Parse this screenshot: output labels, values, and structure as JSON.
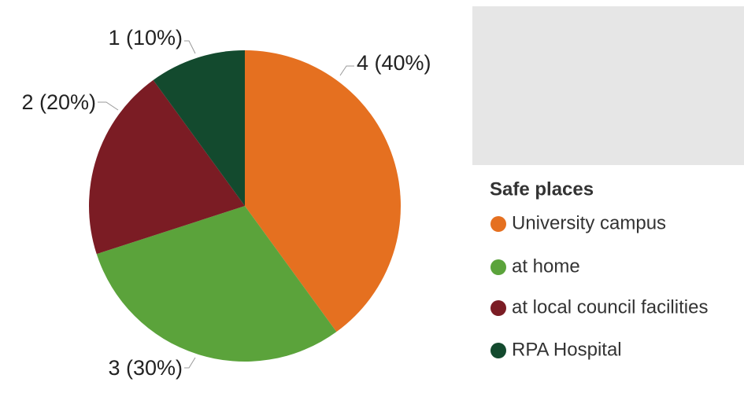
{
  "chart_data": {
    "type": "pie",
    "legend_title": "Safe places",
    "categories": [
      "University campus",
      "at home",
      "at local council facilities",
      "RPA Hospital"
    ],
    "values": [
      4,
      3,
      2,
      1
    ],
    "value_labels": [
      "4 (40%)",
      "3 (30%)",
      "2 (20%)",
      "1 (10%)"
    ],
    "colors": [
      "#e57020",
      "#5ba33b",
      "#7b1c24",
      "#134a2e"
    ],
    "legend": "right"
  }
}
